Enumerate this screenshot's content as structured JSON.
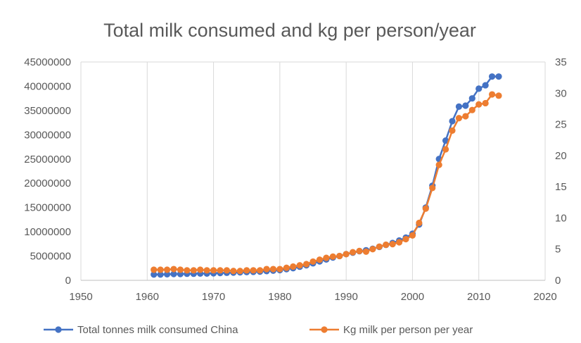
{
  "chart_data": {
    "type": "scatter",
    "title": "Total milk consumed and kg per person/year",
    "xlabel": "",
    "ylabel": "",
    "y2label": "",
    "xlim": [
      1950,
      2020
    ],
    "ylim": [
      0,
      45000000
    ],
    "y2lim": [
      0,
      35
    ],
    "x_ticks": [
      "1950",
      "1960",
      "1970",
      "1980",
      "1990",
      "2000",
      "2010",
      "2020"
    ],
    "y_ticks": [
      "0",
      "5000000",
      "10000000",
      "15000000",
      "20000000",
      "25000000",
      "30000000",
      "35000000",
      "40000000",
      "45000000"
    ],
    "y2_ticks": [
      "0",
      "5",
      "10",
      "15",
      "20",
      "25",
      "30",
      "35"
    ],
    "grid": "vertical",
    "legend_position": "bottom",
    "lines_connected": true,
    "series": [
      {
        "name": "Total tonnes milk consumed China",
        "axis": "left",
        "color": "#4472c4",
        "x": [
          1961,
          1962,
          1963,
          1964,
          1965,
          1966,
          1967,
          1968,
          1969,
          1970,
          1971,
          1972,
          1973,
          1974,
          1975,
          1976,
          1977,
          1978,
          1979,
          1980,
          1981,
          1982,
          1983,
          1984,
          1985,
          1986,
          1987,
          1988,
          1989,
          1990,
          1991,
          1992,
          1993,
          1994,
          1995,
          1996,
          1997,
          1998,
          1999,
          2000,
          2001,
          2002,
          2003,
          2004,
          2005,
          2006,
          2007,
          2008,
          2009,
          2010,
          2011,
          2012,
          2013
        ],
        "y": [
          1200000,
          1200000,
          1250000,
          1300000,
          1300000,
          1350000,
          1350000,
          1400000,
          1400000,
          1450000,
          1500000,
          1550000,
          1600000,
          1650000,
          1700000,
          1750000,
          1800000,
          1900000,
          2000000,
          2100000,
          2300000,
          2500000,
          2800000,
          3100000,
          3500000,
          3900000,
          4300000,
          4700000,
          5000000,
          5400000,
          5700000,
          6000000,
          6200000,
          6500000,
          6900000,
          7300000,
          7700000,
          8200000,
          8800000,
          9600000,
          11500000,
          15000000,
          19500000,
          25000000,
          28800000,
          32800000,
          35800000,
          36000000,
          37500000,
          39500000,
          40200000,
          42000000,
          42000000
        ]
      },
      {
        "name": "Kg milk per person per year",
        "axis": "right",
        "color": "#ed7d31",
        "x": [
          1961,
          1962,
          1963,
          1964,
          1965,
          1966,
          1967,
          1968,
          1969,
          1970,
          1971,
          1972,
          1973,
          1974,
          1975,
          1976,
          1977,
          1978,
          1979,
          1980,
          1981,
          1982,
          1983,
          1984,
          1985,
          1986,
          1987,
          1988,
          1989,
          1990,
          1991,
          1992,
          1993,
          1994,
          1995,
          1996,
          1997,
          1998,
          1999,
          2000,
          2001,
          2002,
          2003,
          2004,
          2005,
          2006,
          2007,
          2008,
          2009,
          2010,
          2011,
          2012,
          2013
        ],
        "y": [
          1.7,
          1.7,
          1.7,
          1.8,
          1.7,
          1.6,
          1.6,
          1.7,
          1.6,
          1.6,
          1.6,
          1.6,
          1.5,
          1.5,
          1.6,
          1.6,
          1.6,
          1.8,
          1.8,
          1.8,
          2.0,
          2.2,
          2.4,
          2.6,
          3.0,
          3.3,
          3.6,
          3.8,
          3.9,
          4.2,
          4.5,
          4.7,
          4.6,
          5.0,
          5.4,
          5.7,
          5.8,
          6.1,
          6.6,
          7.2,
          9.2,
          11.5,
          14.8,
          18.5,
          21.0,
          24.0,
          26.0,
          26.3,
          27.3,
          28.2,
          28.4,
          29.8,
          29.6
        ]
      }
    ]
  }
}
